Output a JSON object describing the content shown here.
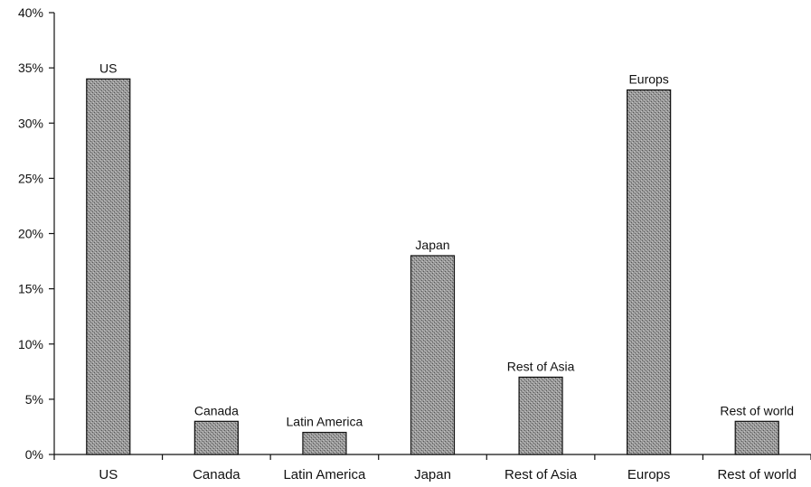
{
  "chart_data": {
    "type": "bar",
    "title": "",
    "xlabel": "",
    "ylabel": "",
    "categories": [
      "US",
      "Canada",
      "Latin America",
      "Japan",
      "Rest of Asia",
      "Europs",
      "Rest of world"
    ],
    "values": [
      34,
      3,
      2,
      18,
      7,
      33,
      3
    ],
    "data_labels": [
      "US",
      "Canada",
      "Latin America",
      "Japan",
      "Rest of Asia",
      "Europs",
      "Rest of world"
    ],
    "ylim": [
      0,
      40
    ],
    "yticks": [
      0,
      5,
      10,
      15,
      20,
      25,
      30,
      35,
      40
    ],
    "ytick_labels": [
      "0%",
      "5%",
      "10%",
      "15%",
      "20%",
      "25%",
      "30%",
      "35%",
      "40%"
    ],
    "grid": false,
    "legend": "none",
    "bar_color": "#8f8f8f"
  }
}
